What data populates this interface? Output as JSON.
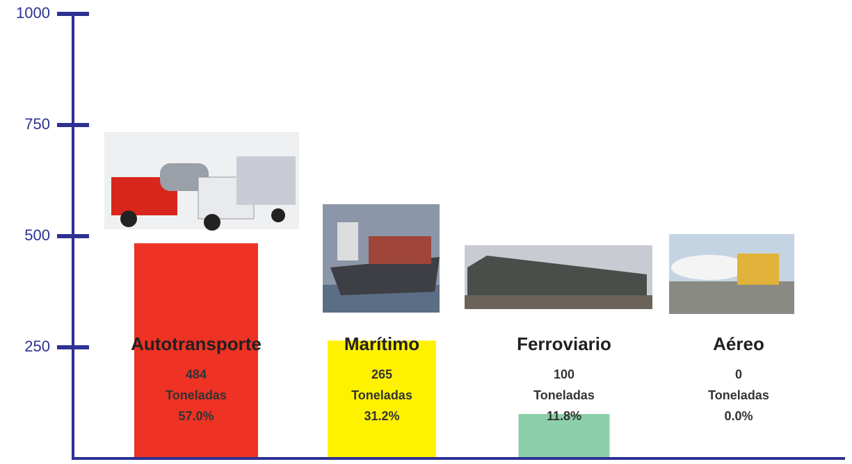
{
  "chart_data": {
    "type": "bar",
    "categories": [
      "Autotransporte",
      "Marítimo",
      "Ferroviario",
      "Aéreo"
    ],
    "values": [
      484,
      265,
      100,
      0
    ],
    "unit": "Toneladas",
    "shares": [
      57.0,
      31.2,
      11.8,
      0.0
    ],
    "share_labels": [
      "57.0%",
      "31.2%",
      "11.8%",
      "0.0%"
    ],
    "colors": [
      "#ee3224",
      "#fff200",
      "#8ccfa8",
      "#8ccfa8"
    ],
    "axis_color": "#2e3192",
    "ylim": [
      0,
      1000
    ],
    "yticks": [
      250,
      500,
      750,
      1000
    ]
  }
}
